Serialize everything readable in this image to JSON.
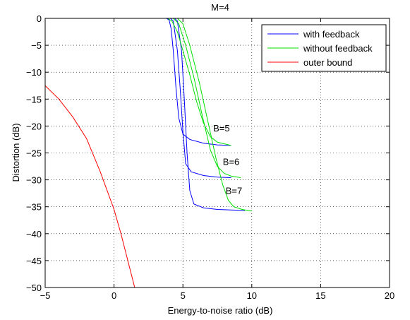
{
  "chart_data": {
    "type": "line",
    "title": "M=4",
    "xlabel": "Energy-to-noise ratio (dB)",
    "ylabel": "Distortion (dB)",
    "xlim": [
      -5,
      20
    ],
    "ylim": [
      -50,
      0
    ],
    "xticks": [
      -5,
      0,
      5,
      10,
      15,
      20
    ],
    "yticks": [
      0,
      -5,
      -10,
      -15,
      -20,
      -25,
      -30,
      -35,
      -40,
      -45,
      -50
    ],
    "xtick_labels": [
      "−5",
      "0",
      "5",
      "10",
      "15",
      "20"
    ],
    "ytick_labels": [
      "0",
      "−5",
      "−10",
      "−15",
      "−20",
      "−25",
      "−30",
      "−35",
      "−40",
      "−45",
      "−50"
    ],
    "grid": true,
    "legend_position": "top-right",
    "colors": {
      "with_feedback": "#0000ff",
      "without_feedback": "#00e000",
      "outer_bound": "#ff0000"
    },
    "series": [
      {
        "name": "with feedback",
        "group": "B=5",
        "x": [
          -1.9,
          3.8,
          4.0,
          4.15,
          4.3,
          4.5,
          4.7,
          5.0,
          5.5,
          6.5,
          7.5,
          8.5
        ],
        "y": [
          0,
          0,
          -0.3,
          -2,
          -6,
          -13,
          -18.5,
          -21.5,
          -22.5,
          -23.2,
          -23.5,
          -23.6
        ]
      },
      {
        "name": "with feedback",
        "group": "B=6",
        "x": [
          4.1,
          4.3,
          4.6,
          4.8,
          5.0,
          5.2,
          5.6,
          6.5,
          7.5,
          8.5
        ],
        "y": [
          0,
          -0.5,
          -6,
          -13,
          -21,
          -27,
          -28.5,
          -29.2,
          -29.5,
          -29.6
        ]
      },
      {
        "name": "with feedback",
        "group": "B=7",
        "x": [
          4.4,
          4.6,
          4.9,
          5.1,
          5.3,
          5.5,
          5.8,
          6.5,
          7.5,
          8.5,
          9.5
        ],
        "y": [
          0,
          -0.5,
          -6,
          -15,
          -25,
          -32,
          -34.5,
          -35.2,
          -35.5,
          -35.6,
          -35.7
        ]
      },
      {
        "name": "without feedback",
        "group": "B=5",
        "x": [
          3.9,
          4.2,
          4.6,
          5.0,
          5.5,
          6.0,
          6.5,
          7.0,
          7.5,
          8.5
        ],
        "y": [
          0,
          -0.5,
          -2.5,
          -6,
          -10.5,
          -15.5,
          -19.5,
          -22,
          -23,
          -23.6
        ]
      },
      {
        "name": "without feedback",
        "group": "B=6",
        "x": [
          4.3,
          4.7,
          5.2,
          5.8,
          6.4,
          7.0,
          7.5,
          8.0,
          8.5,
          9.2
        ],
        "y": [
          0,
          -1,
          -5,
          -11,
          -18,
          -24.5,
          -27.5,
          -28.8,
          -29.3,
          -29.6
        ]
      },
      {
        "name": "without feedback",
        "group": "B=7",
        "x": [
          4.6,
          5.0,
          5.5,
          6.2,
          6.8,
          7.4,
          7.9,
          8.3,
          8.7,
          9.3,
          10.0
        ],
        "y": [
          0,
          -1,
          -5,
          -12,
          -19,
          -26,
          -31,
          -33.8,
          -35,
          -35.5,
          -35.8
        ]
      },
      {
        "name": "outer bound",
        "x": [
          -5,
          -4,
          -3,
          -2,
          -1,
          0,
          0.5,
          1,
          1.5
        ],
        "y": [
          -12.5,
          -15,
          -18.3,
          -22.3,
          -28.5,
          -35.5,
          -40,
          -45,
          -50
        ]
      }
    ],
    "annotations": [
      {
        "text": "B=5",
        "x": 7.2,
        "y": -21
      },
      {
        "text": "B=6",
        "x": 7.9,
        "y": -27.2
      },
      {
        "text": "B=7",
        "x": 8.1,
        "y": -32.6
      }
    ]
  }
}
